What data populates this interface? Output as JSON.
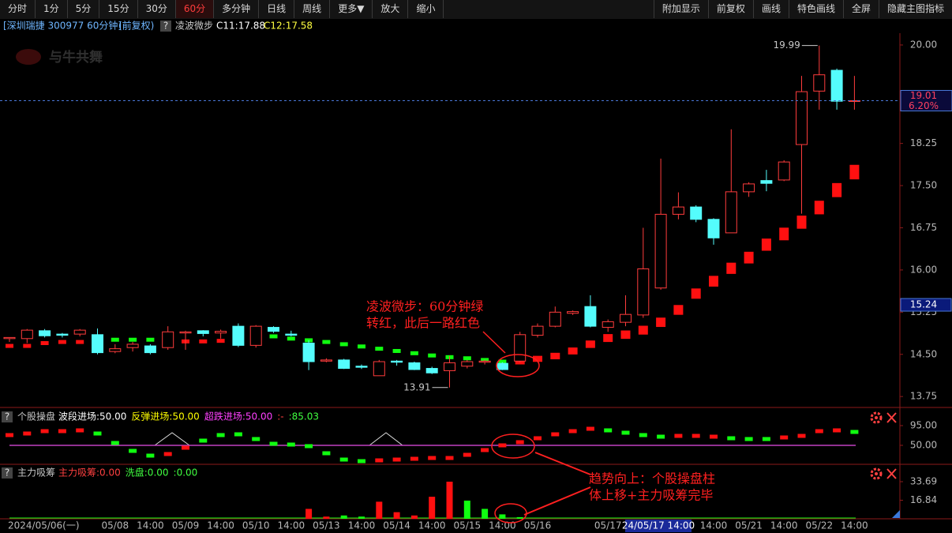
{
  "toolbar": {
    "left": [
      "分时",
      "1分",
      "5分",
      "15分",
      "30分",
      "60分",
      "多分钟",
      "日线",
      "周线",
      "更多▼",
      "放大",
      "缩小"
    ],
    "right": [
      "附加显示",
      "前复权",
      "画线",
      "特色画线",
      "全屏",
      "隐藏主图指标"
    ]
  },
  "header": {
    "symbol": "[深圳瑞捷 300977 60分钟]",
    "adjust": "(前复权)",
    "help": "?",
    "c11": "C11:17.88",
    "c12": "C12:17.58"
  },
  "watermark": "与牛共舞",
  "chart_data": [
    {
      "type": "candlestick",
      "categories": [
        "2024/05/06(一)",
        null,
        null,
        null,
        null,
        null,
        "05/08",
        null,
        "14:00",
        null,
        "05/09",
        null,
        "14:00",
        null,
        "05/10",
        null,
        "14:00",
        null,
        "05/13",
        null,
        "14:00",
        null,
        "05/14",
        null,
        "14:00",
        null,
        "05/15",
        null,
        "14:00",
        null,
        "05/16",
        null,
        null,
        null,
        "05/17",
        null,
        null,
        null,
        null,
        null,
        "14:00",
        null,
        "05/21",
        null,
        "14:00",
        null,
        "05/22",
        null,
        "14:00"
      ],
      "open": [
        14.78,
        14.78,
        14.92,
        14.86,
        14.86,
        14.85,
        14.55,
        14.62,
        14.65,
        14.62,
        14.88,
        14.92,
        14.88,
        15.0,
        14.66,
        14.98,
        14.86,
        14.7,
        14.38,
        14.4,
        14.29,
        14.12,
        14.38,
        14.35,
        14.25,
        14.21,
        14.29,
        14.36,
        14.34,
        14.38,
        14.84,
        15.0,
        15.23,
        15.35,
        14.98,
        15.07,
        15.2,
        15.68,
        16.99,
        17.12,
        16.9,
        16.66,
        17.39,
        17.59,
        17.6,
        18.23,
        19.18,
        19.55,
        19.01
      ],
      "high": [
        14.8,
        14.95,
        14.95,
        14.88,
        14.95,
        14.96,
        14.68,
        14.72,
        14.68,
        15.0,
        14.92,
        14.93,
        14.94,
        15.05,
        15.02,
        15.0,
        14.92,
        14.75,
        14.43,
        14.42,
        14.32,
        14.4,
        14.4,
        14.37,
        14.28,
        14.47,
        14.4,
        14.4,
        14.36,
        14.9,
        15.05,
        15.35,
        15.28,
        15.55,
        15.12,
        15.55,
        16.75,
        17.98,
        17.38,
        17.15,
        16.92,
        18.5,
        17.56,
        17.78,
        17.95,
        19.45,
        19.99,
        19.58,
        19.45
      ],
      "low": [
        14.72,
        14.7,
        14.8,
        14.8,
        14.82,
        14.5,
        14.52,
        14.55,
        14.5,
        14.58,
        14.58,
        14.82,
        14.78,
        14.63,
        14.62,
        14.88,
        14.82,
        14.22,
        14.36,
        14.24,
        14.24,
        14.12,
        14.3,
        14.22,
        14.15,
        13.91,
        14.25,
        14.32,
        14.22,
        14.36,
        14.8,
        14.98,
        15.2,
        14.98,
        14.9,
        15.0,
        15.15,
        15.65,
        16.9,
        16.85,
        16.45,
        16.66,
        17.3,
        17.4,
        17.58,
        17.0,
        18.85,
        18.85,
        18.85
      ],
      "close": [
        14.8,
        14.93,
        14.83,
        14.84,
        14.93,
        14.53,
        14.6,
        14.68,
        14.53,
        14.9,
        14.9,
        14.87,
        14.91,
        14.66,
        15.0,
        14.91,
        14.84,
        14.37,
        14.4,
        14.25,
        14.27,
        14.37,
        14.36,
        14.23,
        14.17,
        14.35,
        14.37,
        14.38,
        14.23,
        14.85,
        15.0,
        15.25,
        15.26,
        15.0,
        15.08,
        15.21,
        16.02,
        16.99,
        17.12,
        16.9,
        16.57,
        17.39,
        17.53,
        17.54,
        17.92,
        19.17,
        19.47,
        19.0,
        19.01
      ],
      "up_color": "#ff3c3c",
      "down_color": "#54fcfc",
      "series": [
        {
          "name": "凌波微步",
          "values": [
            14.65,
            14.65,
            14.7,
            14.72,
            14.72,
            14.76,
            14.76,
            14.76,
            14.76,
            14.7,
            14.73,
            14.73,
            14.74,
            14.75,
            14.82,
            14.82,
            14.78,
            14.75,
            14.72,
            14.68,
            14.64,
            14.6,
            14.56,
            14.52,
            14.48,
            14.45,
            14.43,
            14.4,
            14.37,
            14.37,
            14.42,
            14.47,
            14.56,
            14.68,
            14.79,
            14.85,
            14.93,
            15.07,
            15.29,
            15.58,
            15.8,
            16.03,
            16.22,
            16.45,
            16.64,
            16.85,
            17.11,
            17.42,
            17.74
          ],
          "point_colors": [
            "#ff1010",
            "#ff1010",
            "#ff1010",
            "#ff1010",
            "#ff1010",
            "#10ff10",
            "#10ff10",
            "#10ff10",
            "#10ff10",
            "#ff1010",
            "#ff1010",
            "#ff1010",
            "#ff1010",
            "#ff1010",
            "#10ff10",
            "#10ff10",
            "#10ff10",
            "#10ff10",
            "#10ff10",
            "#10ff10",
            "#10ff10",
            "#10ff10",
            "#10ff10",
            "#10ff10",
            "#10ff10",
            "#10ff10",
            "#10ff10",
            "#10ff10",
            "#10ff10",
            "#ff1010",
            "#ff1010",
            "#ff1010",
            "#ff1010",
            "#ff1010",
            "#ff1010",
            "#ff1010",
            "#ff1010",
            "#ff1010",
            "#ff1010",
            "#ff1010",
            "#ff1010",
            "#ff1010",
            "#ff1010",
            "#ff1010",
            "#ff1010",
            "#ff1010",
            "#ff1010",
            "#ff1010",
            "#ff1010"
          ]
        }
      ],
      "ylim": [
        13.57,
        20.21
      ],
      "yticks": [
        {
          "value": 20,
          "label": "20.00"
        },
        {
          "value": 18.25,
          "label": "18.25"
        },
        {
          "value": 17.5,
          "label": "17.50"
        },
        {
          "value": 16.75,
          "label": "16.75"
        },
        {
          "value": 16,
          "label": "16.00"
        },
        {
          "value": 15.25,
          "label": "15.25"
        },
        {
          "value": 14.5,
          "label": "14.50"
        },
        {
          "value": 13.75,
          "label": "13.75"
        }
      ],
      "extremes": [
        {
          "label": "19.99",
          "value": 19.99
        },
        {
          "label": "13.91",
          "value": 13.91
        }
      ],
      "last_price": {
        "label": "19.01",
        "value": 19.01,
        "change": "6.20%"
      },
      "cursor": {
        "price_label": "15.24",
        "price": 15.24,
        "time_label": "24/05/17 14:00"
      },
      "annotations": [
        [
          "凌波微步：60分钟绿",
          "转红，此后一路红色"
        ],
        [
          "趋势向上：个股操盘柱",
          "体上移+主力吸筹完毕"
        ]
      ]
    },
    {
      "type": "marker",
      "title": "个股操盘",
      "legend": [
        "波段进场:50.00",
        "反弹进场:50.00",
        "超跌进场:50.00",
        ":-",
        ":85.03"
      ],
      "legend_colors": [
        "#ffffff",
        "#ffff00",
        "#ff40ff",
        "#ff4040",
        "#40ff40"
      ],
      "values": [
        73.4,
        77,
        82.4,
        82.4,
        84.2,
        77,
        55.4,
        37.4,
        26.6,
        30.2,
        44.6,
        60.8,
        73.4,
        75.2,
        64.4,
        53.6,
        51.8,
        48.2,
        32,
        17.6,
        14,
        15.8,
        17.6,
        19.4,
        21.2,
        21.2,
        28.4,
        39.2,
        50,
        57.2,
        66.2,
        75.2,
        82.4,
        87.8,
        84.2,
        78.8,
        73.4,
        69.8,
        71.6,
        71.6,
        69.8,
        66.2,
        64.4,
        64.4,
        68,
        71.6,
        82.4,
        84.2,
        80.6
      ],
      "point_colors": [
        "#ff1010",
        "#ff1010",
        "#ff1010",
        "#ff1010",
        "#ff1010",
        "#10ff10",
        "#10ff10",
        "#10ff10",
        "#10ff10",
        "#ff1010",
        "#ff1010",
        "#10ff10",
        "#10ff10",
        "#10ff10",
        "#10ff10",
        "#10ff10",
        "#10ff10",
        "#10ff10",
        "#10ff10",
        "#10ff10",
        "#10ff10",
        "#ff1010",
        "#ff1010",
        "#ff1010",
        "#ff1010",
        "#ff1010",
        "#ff1010",
        "#ff1010",
        "#ff1010",
        "#ff1010",
        "#ff1010",
        "#ff1010",
        "#ff1010",
        "#ff1010",
        "#10ff10",
        "#10ff10",
        "#10ff10",
        "#10ff10",
        "#ff1010",
        "#ff1010",
        "#ff1010",
        "#10ff10",
        "#10ff10",
        "#10ff10",
        "#ff1010",
        "#ff1010",
        "#ff1010",
        "#ff1010",
        "#10ff10"
      ],
      "baseline": 50,
      "baseline_color": "#c040c0",
      "ylim": [
        6.8,
        98.6
      ],
      "yticks": [
        {
          "value": 95,
          "label": "95.00"
        },
        {
          "value": 50,
          "label": "50.00"
        }
      ]
    },
    {
      "type": "bar",
      "title": "主力吸筹",
      "legend": [
        "主力吸筹:0.00",
        "洗盘:0.00",
        ":0.00"
      ],
      "legend_colors": [
        "#ff4040",
        "#40ff40",
        "#40ff40"
      ],
      "series": [
        {
          "color": "#ff1010",
          "values": [
            0,
            0,
            0,
            0,
            0,
            0,
            0,
            0,
            0,
            0,
            0,
            0,
            0,
            0,
            0,
            0,
            0,
            9,
            2,
            0,
            0,
            15.5,
            6,
            3,
            20,
            33.69,
            0,
            0,
            0,
            0,
            0,
            0,
            0,
            0,
            0,
            0,
            0,
            0,
            0,
            0,
            0,
            0,
            0,
            0,
            0,
            0,
            0,
            0,
            0
          ]
        },
        {
          "color": "#10ff10",
          "values": [
            0,
            0,
            0,
            0,
            0,
            0,
            0,
            0,
            0,
            0,
            0,
            0,
            0,
            0,
            0,
            0,
            0,
            0,
            0,
            3,
            2,
            0,
            0,
            0,
            0,
            0,
            16.5,
            9,
            4,
            1.5,
            0,
            0,
            0,
            0,
            0,
            0,
            0,
            0,
            0,
            0,
            0,
            0,
            0,
            0,
            0,
            0,
            0,
            0,
            0
          ]
        }
      ],
      "ylim": [
        0,
        35.84
      ],
      "yticks": [
        {
          "value": 33.69,
          "label": "33.69"
        },
        {
          "value": 16.84,
          "label": "16.84"
        }
      ]
    }
  ]
}
